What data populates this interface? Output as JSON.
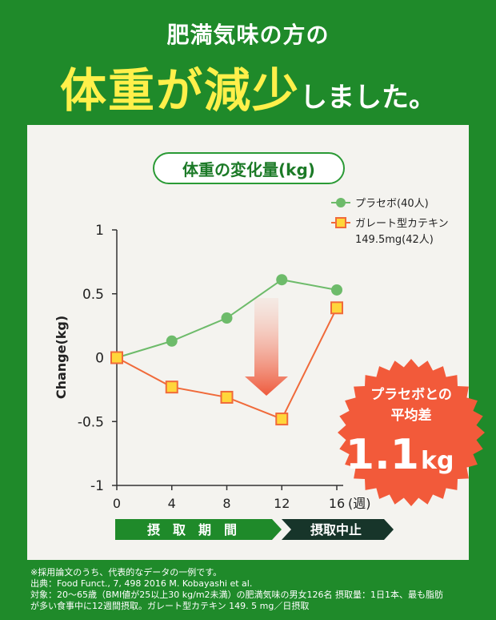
{
  "header": {
    "line1": "肥満気味の方の",
    "line2_highlight": "体重が減少",
    "line2_tail": "しました。"
  },
  "chart_title": "体重の変化量(kg)",
  "colors": {
    "background": "#1f8a2a",
    "placebo": "#6dbb6a",
    "catechin": "#f06a3a",
    "catechin_fill": "#ffd63a",
    "badge": "#f25a3a",
    "period_active": "#1f8a2a",
    "period_stop": "#17352a"
  },
  "chart_data": {
    "type": "line",
    "ylabel": "Change(kg)",
    "x_unit": "(週)",
    "x": [
      0,
      4,
      8,
      12,
      16
    ],
    "ylim": [
      -1,
      1
    ],
    "yticks": [
      "1",
      "0.5",
      "0",
      "-0.5",
      "-1"
    ],
    "xticks": [
      "0",
      "4",
      "8",
      "12",
      "16"
    ],
    "series": [
      {
        "name": "プラセボ(40人)",
        "values": [
          0,
          0.13,
          0.31,
          0.61,
          0.53
        ]
      },
      {
        "name": "ガレート型カテキン",
        "name_line2": "149.5mg(42人)",
        "values": [
          0,
          -0.23,
          -0.31,
          -0.48,
          0.39
        ]
      }
    ],
    "periods": [
      {
        "label": "摂　取　期　間"
      },
      {
        "label": "摂取中止"
      }
    ],
    "badge": {
      "line1": "プラセボとの",
      "line2": "平均差",
      "value": "1.1",
      "unit": "kg"
    }
  },
  "footnote": {
    "line1": "※採用論文のうち、代表的なデータの一例です。",
    "line2": "出典：Food Funct., 7, 498 2016 M. Kobayashi et al.",
    "line3": "対象：20〜65歳（BMI値が25以上30 kg/m2未満）の肥満気味の男女126名 摂取量：1日1本、最も脂肪",
    "line4": "が多い食事中に12週間摂取。ガレート型カテキン 149. 5 mg／日摂取"
  }
}
